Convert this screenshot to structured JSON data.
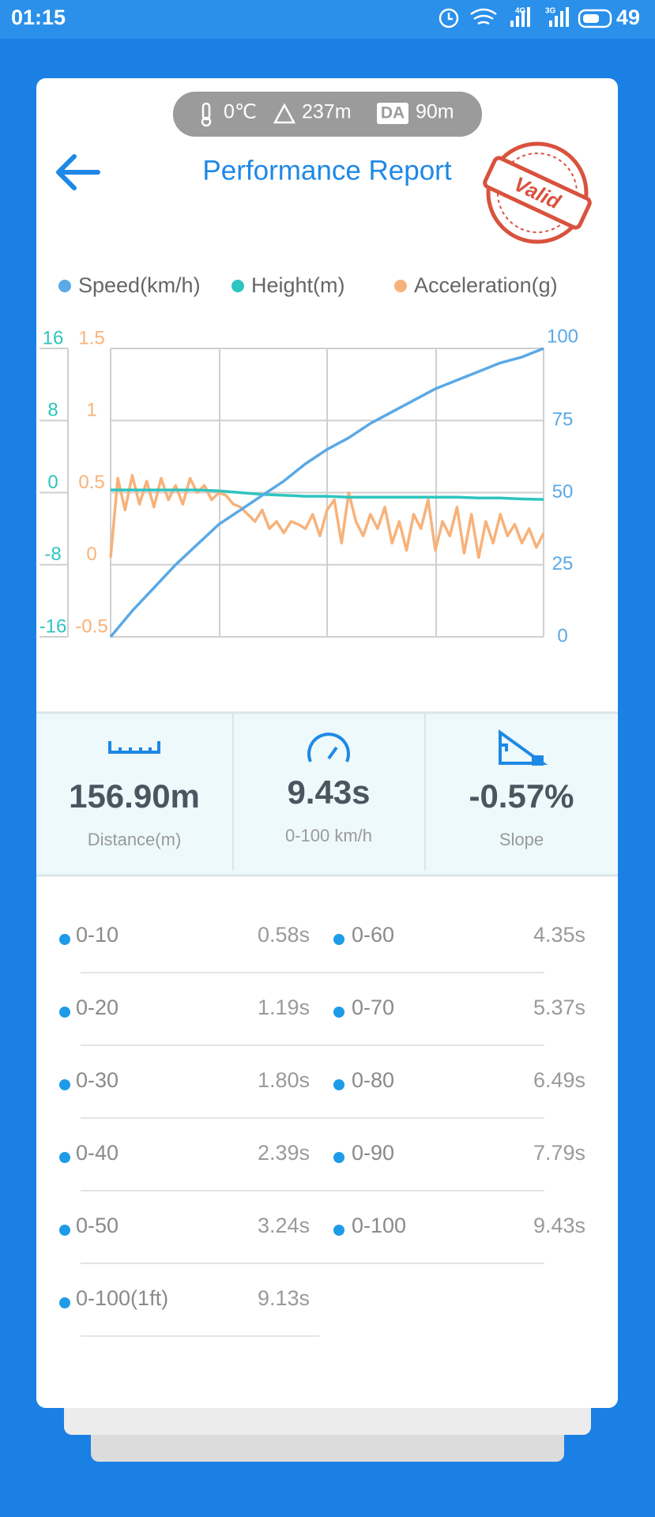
{
  "status_bar": {
    "time": "01:15",
    "network": [
      "4G",
      "3G"
    ],
    "battery": "49"
  },
  "conditions": {
    "temperature": "0℃",
    "altitude": "237m",
    "da_badge": "DA",
    "density_altitude": "90m"
  },
  "header": {
    "title": "Performance Report",
    "stamp": "Valid"
  },
  "chart_data": {
    "type": "line",
    "series": [
      {
        "name": "Speed(km/h)",
        "color": "#5aa9e6",
        "axis": "y",
        "values": [
          0,
          9,
          17,
          25,
          32,
          39,
          44,
          49,
          54,
          60,
          65,
          69,
          74,
          78,
          82,
          86,
          89,
          92,
          95,
          97,
          100
        ]
      },
      {
        "name": "Height(m)",
        "color": "#2ec4bf",
        "axis": "y3",
        "values": [
          0.3,
          0.3,
          0.3,
          0.3,
          0.3,
          0.2,
          0,
          -0.2,
          -0.3,
          -0.4,
          -0.4,
          -0.5,
          -0.5,
          -0.5,
          -0.5,
          -0.5,
          -0.5,
          -0.6,
          -0.6,
          -0.7,
          -0.75
        ]
      },
      {
        "name": "Acceleration(g)",
        "color": "#f7b27a",
        "axis": "y2",
        "values": [
          0.05,
          0.6,
          0.38,
          0.62,
          0.42,
          0.58,
          0.4,
          0.6,
          0.45,
          0.55,
          0.42,
          0.6,
          0.5,
          0.55,
          0.45,
          0.5,
          0.48,
          0.42,
          0.4,
          0.35,
          0.3,
          0.38,
          0.25,
          0.3,
          0.22,
          0.3,
          0.28,
          0.25,
          0.35,
          0.2,
          0.38,
          0.45,
          0.15,
          0.5,
          0.3,
          0.2,
          0.35,
          0.25,
          0.4,
          0.15,
          0.3,
          0.1,
          0.35,
          0.25,
          0.45,
          0.1,
          0.3,
          0.2,
          0.4,
          0.08,
          0.35,
          0.05,
          0.3,
          0.15,
          0.35,
          0.2,
          0.28,
          0.15,
          0.25,
          0.12,
          0.22
        ]
      }
    ],
    "ylim": [
      0,
      100
    ],
    "yticks": [
      0,
      25,
      50,
      75,
      100
    ],
    "y2lim": [
      -0.5,
      1.5
    ],
    "y2ticks": [
      -0.5,
      0,
      0.5,
      1,
      1.5
    ],
    "y3lim": [
      -16,
      16
    ],
    "y3ticks": [
      -16,
      -8,
      0,
      8,
      16
    ],
    "grid": true
  },
  "stats": [
    {
      "value": "156.90m",
      "label": "Distance(m)"
    },
    {
      "value": "9.43s",
      "label": "0-100 km/h"
    },
    {
      "value": "-0.57%",
      "label": "Slope"
    }
  ],
  "times": [
    [
      {
        "label": "0-10",
        "value": "0.58s"
      },
      {
        "label": "0-60",
        "value": "4.35s"
      }
    ],
    [
      {
        "label": "0-20",
        "value": "1.19s"
      },
      {
        "label": "0-70",
        "value": "5.37s"
      }
    ],
    [
      {
        "label": "0-30",
        "value": "1.80s"
      },
      {
        "label": "0-80",
        "value": "6.49s"
      }
    ],
    [
      {
        "label": "0-40",
        "value": "2.39s"
      },
      {
        "label": "0-90",
        "value": "7.79s"
      }
    ],
    [
      {
        "label": "0-50",
        "value": "3.24s"
      },
      {
        "label": "0-100",
        "value": "9.43s"
      }
    ],
    [
      {
        "label": "0-100(1ft)",
        "value": "9.13s"
      }
    ]
  ]
}
